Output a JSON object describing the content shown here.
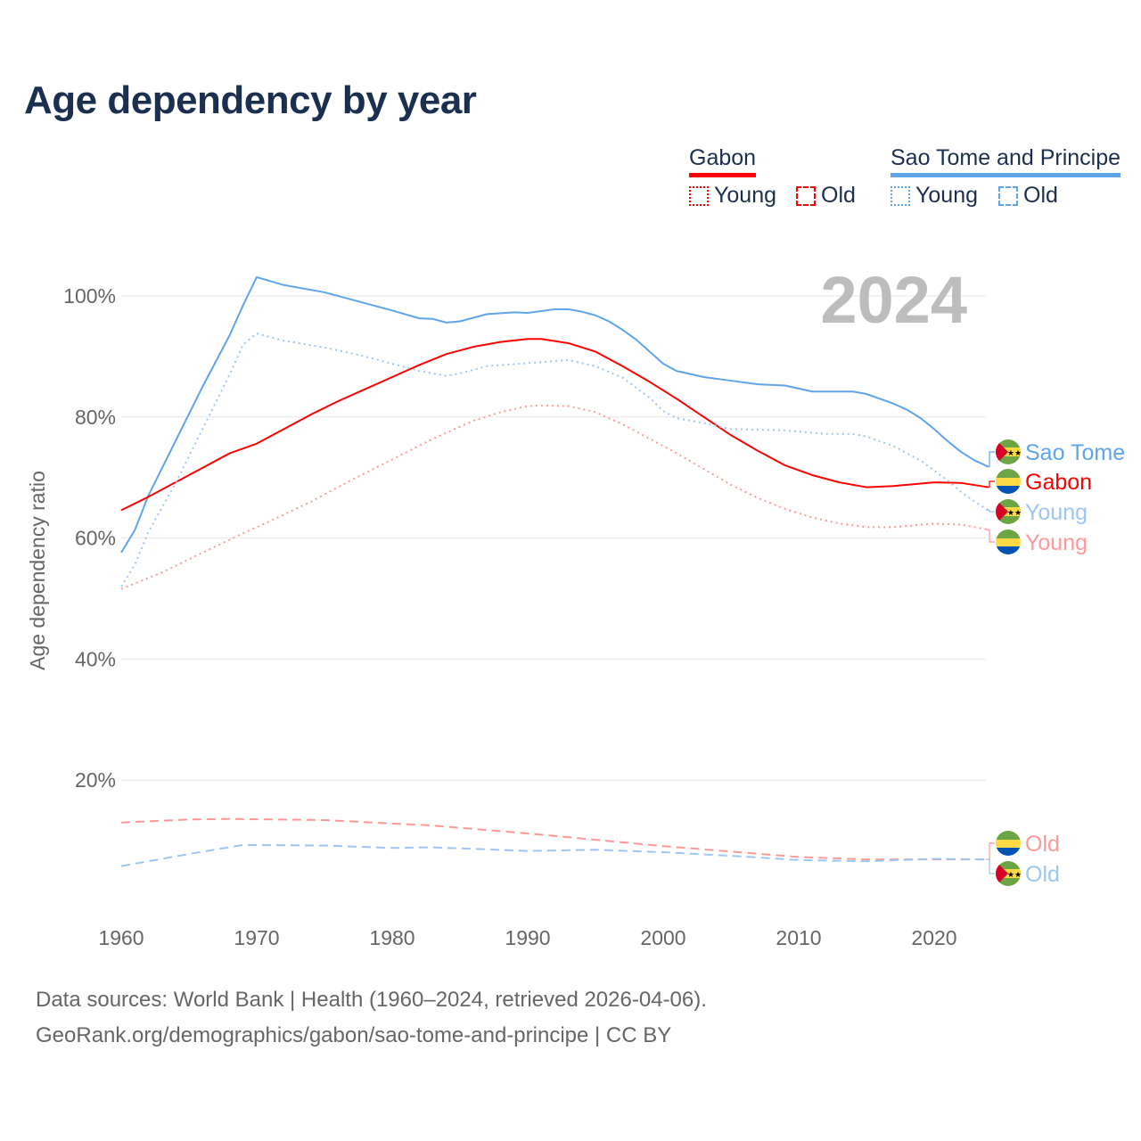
{
  "title": "Age dependency by year",
  "legend": {
    "gabon": {
      "label": "Gabon",
      "young": "Young",
      "old": "Old"
    },
    "stp": {
      "label": "Sao Tome and Principe",
      "young": "Young",
      "old": "Old"
    }
  },
  "year_label": "2024",
  "footer": [
    "Data sources: World Bank | Health (1960–2024, retrieved 2026-04-06).",
    "GeoRank.org/demographics/gabon/sao-tome-and-principe | CC BY"
  ],
  "colors": {
    "gabon": "#ff0000",
    "gabon_light": "#ff9999",
    "stp": "#5ea5ea",
    "stp_light": "#9ec6f2"
  },
  "chart_data": {
    "type": "line",
    "title": "Age dependency by year",
    "ylabel": "Age dependency ratio",
    "xlim": [
      1960,
      2024
    ],
    "ylim": [
      0,
      105
    ],
    "xticks": [
      1960,
      1970,
      1980,
      1990,
      2000,
      2010,
      2020
    ],
    "yticks": [
      {
        "v": 20,
        "label": "20%"
      },
      {
        "v": 40,
        "label": "40%"
      },
      {
        "v": 60,
        "label": "60%"
      },
      {
        "v": 80,
        "label": "80%"
      },
      {
        "v": 100,
        "label": "100%"
      }
    ],
    "series": [
      {
        "name": "Sao Tome and Principe",
        "end_label": "Sao Tome",
        "color": "#5ea5ea",
        "style": "solid",
        "flag": "stp",
        "x": [
          1960,
          1961,
          1962,
          1964,
          1966,
          1968,
          1969,
          1970,
          1972,
          1975,
          1976,
          1980,
          1982,
          1983,
          1984,
          1985,
          1987,
          1989,
          1990,
          1992,
          1993,
          1994,
          1995,
          1996,
          1997,
          1998,
          1999,
          2000,
          2001,
          2003,
          2005,
          2007,
          2009,
          2011,
          2014,
          2015,
          2017,
          2018,
          2019,
          2020,
          2021,
          2022,
          2023,
          2024
        ],
        "y": [
          57.6,
          61.3,
          67,
          76,
          85,
          93.5,
          98.5,
          103.1,
          101.8,
          100.6,
          100,
          97.6,
          96.3,
          96.2,
          95.6,
          95.8,
          97,
          97.3,
          97.2,
          97.8,
          97.8,
          97.4,
          96.8,
          95.8,
          94.4,
          92.8,
          90.8,
          88.8,
          87.6,
          86.6,
          86,
          85.4,
          85.2,
          84.2,
          84.2,
          83.8,
          82.2,
          81.2,
          79.8,
          78,
          76,
          74.2,
          72.8,
          71.8
        ]
      },
      {
        "name": "Gabon",
        "end_label": "Gabon",
        "color": "#ff0000",
        "style": "solid",
        "flag": "gabon",
        "x": [
          1960,
          1962,
          1964,
          1966,
          1968,
          1970,
          1972,
          1974,
          1976,
          1978,
          1980,
          1982,
          1984,
          1986,
          1988,
          1990,
          1991,
          1993,
          1995,
          1997,
          1999,
          2001,
          2003,
          2005,
          2007,
          2009,
          2011,
          2013,
          2015,
          2017,
          2019,
          2020,
          2022,
          2024
        ],
        "y": [
          64.6,
          66.8,
          69.2,
          71.6,
          74,
          75.6,
          78,
          80.4,
          82.6,
          84.6,
          86.6,
          88.6,
          90.4,
          91.6,
          92.4,
          92.9,
          92.9,
          92.2,
          90.8,
          88.4,
          85.8,
          83,
          80,
          77,
          74.4,
          72,
          70.4,
          69.2,
          68.4,
          68.6,
          69,
          69.2,
          69.1,
          68.4
        ]
      },
      {
        "name": "Sao Tome and Principe Young",
        "end_label": "Young",
        "color": "#9ec6f2",
        "style": "dotted",
        "flag": "stp",
        "x": [
          1960,
          1961,
          1962,
          1964,
          1966,
          1968,
          1969,
          1970,
          1972,
          1975,
          1978,
          1980,
          1982,
          1984,
          1985,
          1987,
          1990,
          1993,
          1995,
          1997,
          1999,
          2000,
          2001,
          2003,
          2005,
          2009,
          2012,
          2014,
          2015,
          2017,
          2019,
          2021,
          2022,
          2023,
          2024
        ],
        "y": [
          52,
          55.6,
          61,
          69,
          78,
          87,
          92,
          93.8,
          92.6,
          91.5,
          90,
          88.8,
          87.6,
          86.8,
          87.2,
          88.4,
          88.9,
          89.4,
          88.4,
          86.5,
          83.2,
          81,
          79.8,
          79,
          78,
          77.8,
          77.2,
          77.2,
          76.8,
          75.2,
          72.8,
          69.5,
          67.6,
          66,
          64.6
        ]
      },
      {
        "name": "Gabon Young",
        "end_label": "Young",
        "color": "#ff9999",
        "style": "dotted",
        "flag": "gabon",
        "x": [
          1960,
          1963,
          1966,
          1969,
          1971,
          1974,
          1977,
          1980,
          1983,
          1986,
          1988,
          1990,
          1991,
          1993,
          1995,
          1997,
          1999,
          2001,
          2003,
          2005,
          2007,
          2009,
          2011,
          2013,
          2015,
          2017,
          2020,
          2022,
          2024
        ],
        "y": [
          51.6,
          54.3,
          57.6,
          60.8,
          62.8,
          66,
          69.6,
          73,
          76.4,
          79.4,
          80.8,
          81.8,
          81.9,
          81.8,
          80.8,
          78.8,
          76.4,
          74,
          71.4,
          68.8,
          66.6,
          64.8,
          63.4,
          62.4,
          61.8,
          61.8,
          62.4,
          62.2,
          61.4
        ]
      },
      {
        "name": "Gabon Old",
        "end_label": "Old",
        "color": "#ff9999",
        "style": "dashed",
        "flag": "gabon",
        "x": [
          1960,
          1965,
          1968,
          1975,
          1983,
          1990,
          2000,
          2010,
          2015,
          2020,
          2024
        ],
        "y": [
          13,
          13.5,
          13.6,
          13.4,
          12.5,
          11.2,
          9.1,
          7.3,
          6.9,
          6.9,
          6.9
        ]
      },
      {
        "name": "Sao Tome and Principe Old",
        "end_label": "Old",
        "color": "#9ec6f2",
        "style": "dashed",
        "flag": "stp",
        "x": [
          1960,
          1965,
          1969,
          1975,
          1980,
          1983,
          1990,
          1995,
          2000,
          2005,
          2010,
          2015,
          2020,
          2024
        ],
        "y": [
          5.8,
          7.8,
          9.3,
          9.2,
          8.8,
          8.9,
          8.3,
          8.5,
          8.1,
          7.5,
          6.8,
          6.6,
          7,
          6.9
        ]
      }
    ]
  }
}
